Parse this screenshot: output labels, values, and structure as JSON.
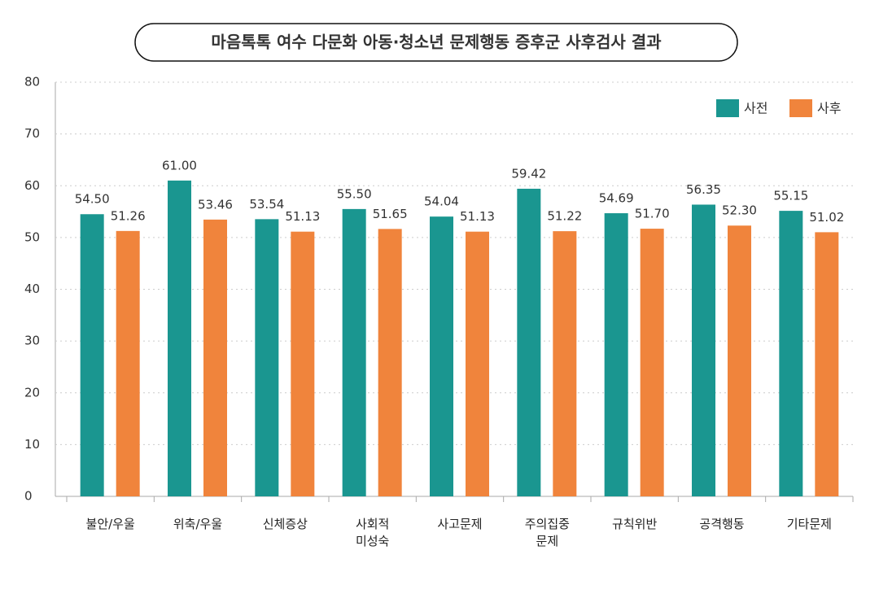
{
  "chart_data": {
    "type": "bar",
    "title": "마음톡톡 여수 다문화 아동·청소년 문제행동 증후군 사후검사 결과",
    "categories": [
      "불안/우울",
      "위축/우울",
      "신체증상",
      "사회적\n미성숙",
      "사고문제",
      "주의집중\n문제",
      "규칙위반",
      "공격행동",
      "기타문제"
    ],
    "series": [
      {
        "name": "사전",
        "color": "#1a9690",
        "values": [
          54.5,
          61.0,
          53.54,
          55.5,
          54.04,
          59.42,
          54.69,
          56.35,
          55.15
        ],
        "value_labels": [
          "54.50",
          "61.00",
          "53.54",
          "55.50",
          "54.04",
          "59.42",
          "54.69",
          "56.35",
          "55.15"
        ]
      },
      {
        "name": "사후",
        "color": "#f0843c",
        "values": [
          51.26,
          53.46,
          51.13,
          51.65,
          51.13,
          51.22,
          51.7,
          52.3,
          51.02
        ],
        "value_labels": [
          "51.26",
          "53.46",
          "51.13",
          "51.65",
          "51.13",
          "51.22",
          "51.70",
          "52.30",
          "51.02"
        ]
      }
    ],
    "ylim": [
      0,
      80
    ],
    "yticks": [
      0,
      10,
      20,
      30,
      40,
      50,
      60,
      70,
      80
    ],
    "grid": true,
    "legend": "upper right"
  }
}
